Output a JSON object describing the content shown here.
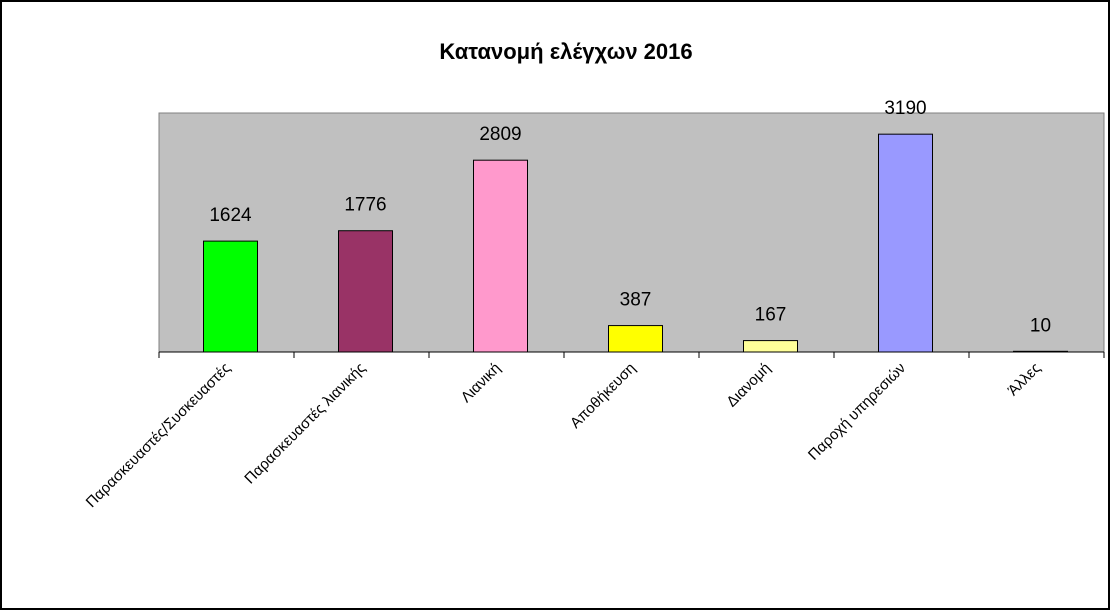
{
  "chart_data": {
    "type": "bar",
    "title": "Κατανομή ελέγχων 2016",
    "categories": [
      "Παρασκευαστές/Συσκευαστές",
      "Παρασκευαστές λιανικής",
      "Λιανική",
      "Αποθήκευση",
      "Διανομή",
      "Παροχή υπηρεσιών",
      "Άλλες"
    ],
    "values": [
      1624,
      1776,
      2809,
      387,
      167,
      3190,
      10
    ],
    "colors": [
      "#00ff00",
      "#993366",
      "#ff99cc",
      "#ffff00",
      "#ffff99",
      "#9999ff",
      "#ff8080"
    ],
    "plot_background": "#c0c0c0",
    "ylim": [
      0,
      3500
    ]
  }
}
